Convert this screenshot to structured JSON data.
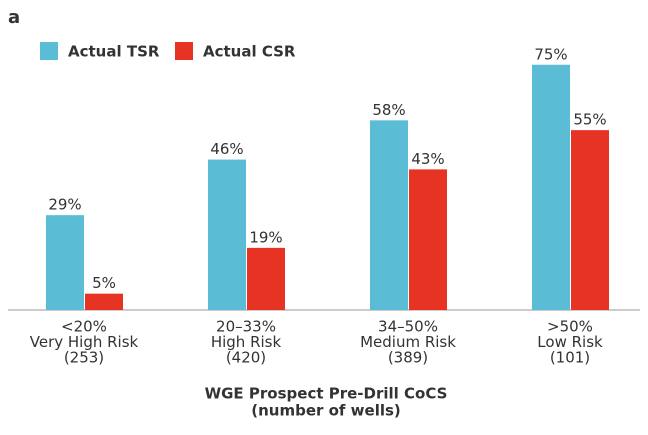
{
  "panel_label": "a",
  "chart_data": {
    "type": "bar",
    "categories": [
      [
        "<20%",
        "Very High Risk",
        "(253)"
      ],
      [
        "20–33%",
        "High Risk",
        "(420)"
      ],
      [
        "34–50%",
        "Medium Risk",
        "(389)"
      ],
      [
        ">50%",
        "Low Risk",
        "(101)"
      ]
    ],
    "series": [
      {
        "name": "Actual TSR",
        "color": "#5bbcd6",
        "values": [
          29,
          46,
          58,
          75
        ],
        "value_labels": [
          "29%",
          "46%",
          "58%",
          "75%"
        ]
      },
      {
        "name": "Actual CSR",
        "color": "#e63323",
        "values": [
          5,
          19,
          43,
          55
        ],
        "value_labels": [
          "5%",
          "19%",
          "43%",
          "55%"
        ]
      }
    ],
    "x_label": [
      "WGE Prospect Pre-Drill CoCS",
      "(number of wells)"
    ]
  }
}
